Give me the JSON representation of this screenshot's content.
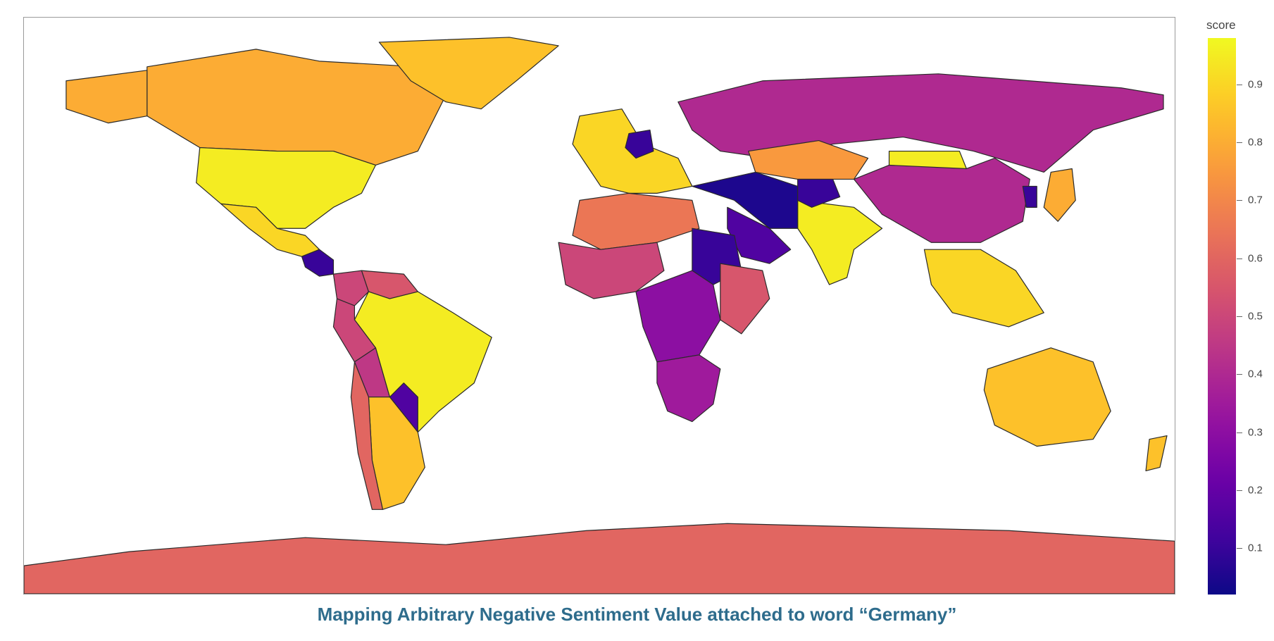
{
  "caption": "Mapping Arbitrary Negative Sentiment Value attached to word “Germany”",
  "colorbar": {
    "title": "score",
    "ticks": [
      "0.9",
      "0.8",
      "0.7",
      "0.6",
      "0.5",
      "0.4",
      "0.3",
      "0.2",
      "0.1"
    ],
    "colorscale": "Plasma",
    "range": [
      0.02,
      0.98
    ]
  },
  "chart_data": {
    "type": "choropleth",
    "locations": [
      "Canada",
      "USA",
      "Mexico",
      "Central America",
      "Colombia",
      "Venezuela",
      "Brazil",
      "Peru",
      "Bolivia",
      "Paraguay",
      "Argentina",
      "Chile",
      "Greenland",
      "Alaska",
      "Western Europe",
      "Germany",
      "Russia",
      "Kazakhstan",
      "Mongolia",
      "China",
      "India",
      "Middle East",
      "Saudi Arabia",
      "Afghanistan",
      "North Africa",
      "West Africa",
      "Sudan",
      "Central Africa",
      "East Africa",
      "Southern Africa",
      "Southeast Asia",
      "Japan",
      "Korea",
      "Australia",
      "New Zealand",
      "Antarctica"
    ],
    "values": [
      0.8,
      0.95,
      0.9,
      0.1,
      0.5,
      0.55,
      0.95,
      0.5,
      0.45,
      0.15,
      0.85,
      0.6,
      0.85,
      0.8,
      0.9,
      0.1,
      0.4,
      0.75,
      0.95,
      0.4,
      0.95,
      0.05,
      0.15,
      0.1,
      0.65,
      0.5,
      0.1,
      0.3,
      0.55,
      0.35,
      0.9,
      0.8,
      0.1,
      0.85,
      0.85,
      0.6
    ]
  }
}
